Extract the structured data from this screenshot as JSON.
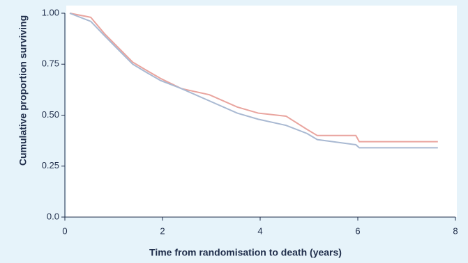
{
  "chart_data": {
    "type": "line",
    "xlabel": "Time from randomisation to death (years)",
    "ylabel": "Cumulative proportion surviving",
    "x": [
      0.1,
      0.53,
      0.81,
      1.1,
      1.39,
      1.67,
      1.96,
      2.39,
      2.96,
      3.53,
      3.96,
      4.53,
      4.96,
      5.17,
      5.96,
      6.03,
      7.64
    ],
    "series": [
      {
        "color": "#e9a49e",
        "values": [
          1.0,
          0.98,
          0.9,
          0.83,
          0.76,
          0.72,
          0.68,
          0.63,
          0.6,
          0.54,
          0.51,
          0.495,
          0.43,
          0.4,
          0.4,
          0.37,
          0.37
        ]
      },
      {
        "color": "#a9b9d2",
        "values": [
          1.0,
          0.96,
          0.89,
          0.82,
          0.75,
          0.71,
          0.67,
          0.63,
          0.57,
          0.51,
          0.48,
          0.45,
          0.41,
          0.38,
          0.355,
          0.34,
          0.34
        ]
      }
    ],
    "xlim": [
      0,
      8
    ],
    "xticks": [
      0,
      2,
      4,
      6,
      8
    ],
    "ylim": [
      0,
      1
    ],
    "yticks": [
      {
        "value": 0,
        "label": "0.0"
      },
      {
        "value": 0.25,
        "label": "0.25"
      },
      {
        "value": 0.5,
        "label": "0.50"
      },
      {
        "value": 0.75,
        "label": "0.75"
      },
      {
        "value": 1,
        "label": "1.00"
      }
    ]
  }
}
